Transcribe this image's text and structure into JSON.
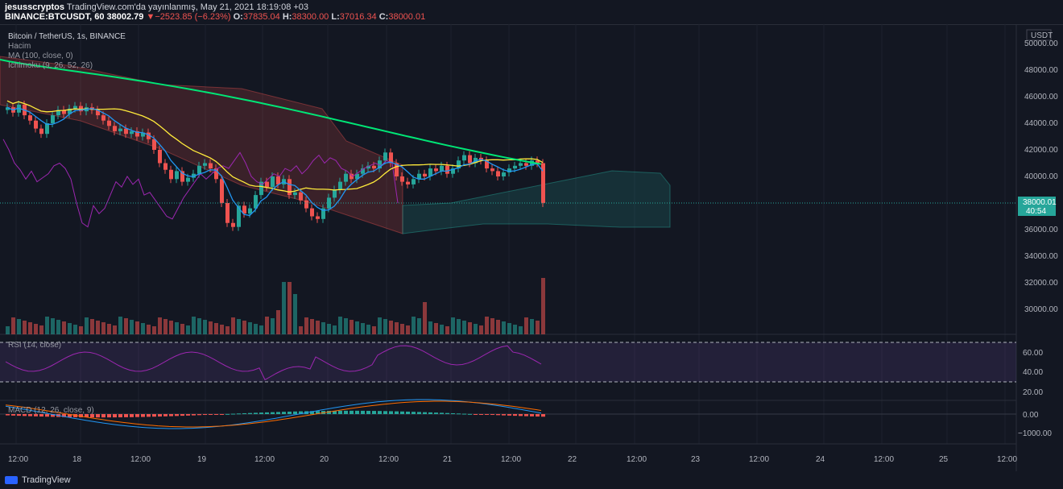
{
  "header": {
    "author": "jesusscryptos",
    "published": "TradingView.com'da yayınlanmış, May 21, 2021 18:19:08 +03",
    "symbol": "BINANCE:BTCUSDT, 60",
    "price": "38002.79",
    "change": "−2523.85 (−6.23%)",
    "o_label": "O:",
    "o_value": "37835.04",
    "h_label": "H:",
    "h_value": "38300.00",
    "l_label": "L:",
    "l_value": "37016.34",
    "c_label": "C:",
    "c_value": "38000.01"
  },
  "legend": {
    "title": "Bitcoin / TetherUS, 1s, BINANCE",
    "volume": "Hacim",
    "ma": "MA (100, close, 0)",
    "ichimoku": "Ichimoku (9, 26, 52, 26)",
    "rsi": "RSI (14, close)",
    "macd": "MACD (12, 26, close, 9)"
  },
  "price_axis": {
    "currency": "USDT",
    "ticks": [
      "50000.00",
      "48000.00",
      "46000.00",
      "44000.00",
      "42000.00",
      "40000.00",
      "36000.00",
      "34000.00",
      "32000.00",
      "30000.00"
    ],
    "last_price": "38000.01",
    "countdown": "40:54"
  },
  "rsi_axis": {
    "ticks": [
      "60.00",
      "40.00",
      "20.00"
    ]
  },
  "macd_axis": {
    "ticks": [
      "0.00",
      "−1000.00"
    ]
  },
  "time_axis": {
    "ticks": [
      "12:00",
      "18",
      "12:00",
      "19",
      "12:00",
      "20",
      "12:00",
      "21",
      "12:00",
      "22",
      "12:00",
      "23",
      "12:00",
      "24",
      "12:00",
      "25",
      "12:00"
    ]
  },
  "footer": {
    "brand": "TradingView"
  },
  "colors": {
    "background": "#131722",
    "up": "#26a69a",
    "down": "#ef5350",
    "ma": "#00e676",
    "tenkan": "#2196f3",
    "kijun": "#ffeb3b",
    "chikou": "#9c27b0",
    "rsi": "#9c27b0"
  }
}
